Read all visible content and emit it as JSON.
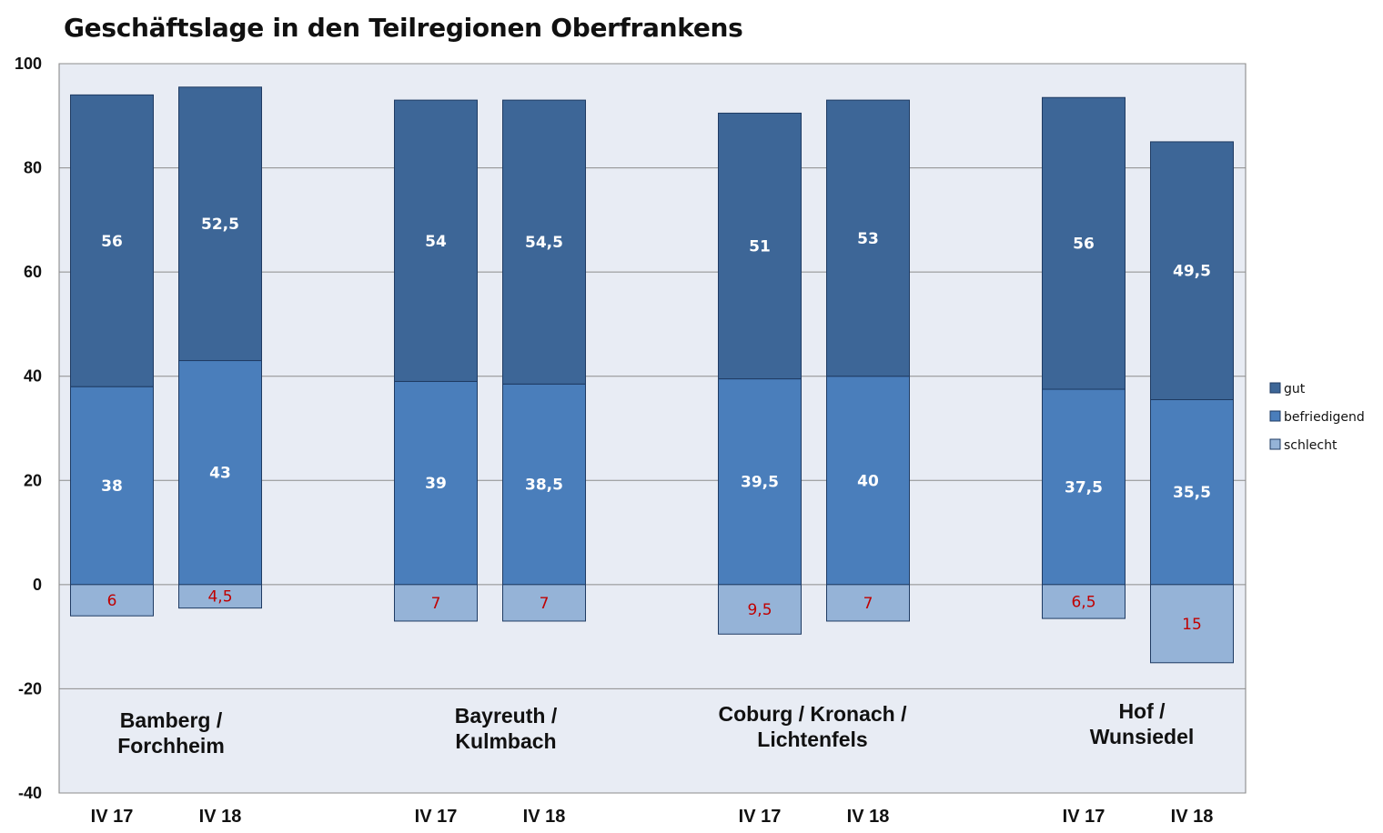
{
  "chart_data": {
    "type": "bar",
    "stacked": true,
    "title": "Geschäftslage in den Teilregionen Oberfrankens",
    "ylim": [
      -40,
      100
    ],
    "yticks": [
      100,
      80,
      60,
      40,
      20,
      0,
      -20,
      -40
    ],
    "grid": true,
    "legend_position": "right",
    "groups": [
      "Bamberg /\nForchheim",
      "Bayreuth /\nKulmbach",
      "Coburg / Kronach /\nLichtenfels",
      "Hof /\nWunsiedel"
    ],
    "categories": [
      "IV 17",
      "IV 18",
      "IV 17",
      "IV 18",
      "IV 17",
      "IV 18",
      "IV 17",
      "IV 18"
    ],
    "series": [
      {
        "name": "gut",
        "color": "#3d6697",
        "values": [
          56,
          52.5,
          54,
          54.5,
          51,
          53,
          56,
          49.5
        ],
        "labels": [
          "56",
          "52,5",
          "54",
          "54,5",
          "51",
          "53",
          "56",
          "49,5"
        ]
      },
      {
        "name": "befriedigend",
        "color": "#4a7ebb",
        "values": [
          38,
          43,
          39,
          38.5,
          39.5,
          40,
          37.5,
          35.5
        ],
        "labels": [
          "38",
          "43",
          "39",
          "38,5",
          "39,5",
          "40",
          "37,5",
          "35,5"
        ]
      },
      {
        "name": "schlecht",
        "color": "#95b3d7",
        "values": [
          -6,
          -4.5,
          -7,
          -7,
          -9.5,
          -7,
          -6.5,
          -15
        ],
        "labels": [
          "6",
          "4,5",
          "7",
          "7",
          "9,5",
          "7",
          "6,5",
          "15"
        ]
      }
    ],
    "plot_background": "#e8ecf4",
    "label_colors": {
      "inside": "#ffffff",
      "negative": "#c00000"
    }
  }
}
